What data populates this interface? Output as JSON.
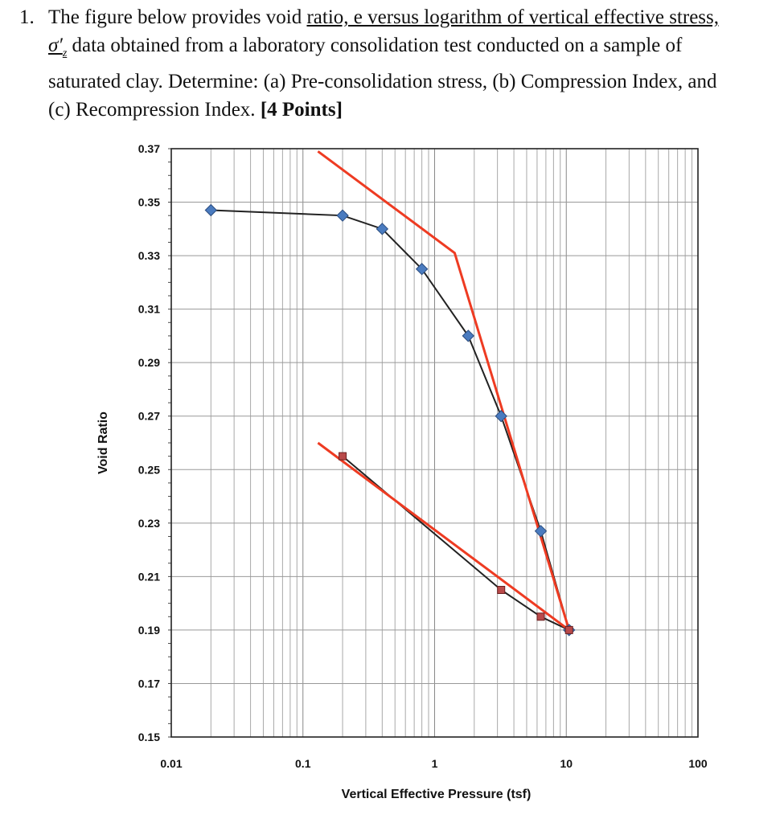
{
  "question": {
    "number": "1.",
    "line1_pre": "The figure below provides void ",
    "line1_ul": "ratio, e versus logarithm of vertical effective stress,",
    "line2_sigma": "σ′",
    "line2_sub": "z",
    "line2_rest": " data obtained from a laboratory consolidation test conducted on a sample of",
    "line3": "saturated clay. Determine: (a) Pre-consolidation stress, (b) Compression Index, and",
    "line4_pre": "(c) Recompression Index. ",
    "line4_bold": "[4 Points]"
  },
  "chart_data": {
    "type": "scatter",
    "xscale": "log",
    "xlim": [
      0.01,
      100
    ],
    "ylim": [
      0.15,
      0.37
    ],
    "xlabel": "Vertical Effective Pressure (tsf)",
    "ylabel": "Void Ratio",
    "xticks": [
      0.01,
      0.1,
      1,
      10,
      100
    ],
    "xtick_labels": [
      "0.01",
      "0.1",
      "1",
      "10",
      "100"
    ],
    "yticks": [
      0.37,
      0.35,
      0.33,
      0.31,
      0.29,
      0.27,
      0.25,
      0.23,
      0.21,
      0.19,
      0.17,
      0.15
    ],
    "ytick_labels": [
      "0.37",
      "0.35",
      "0.33",
      "0.31",
      "0.29",
      "0.27",
      "0.25",
      "0.23",
      "0.21",
      "0.19",
      "0.17",
      "0.15"
    ],
    "grid": true,
    "series": [
      {
        "marker": "diamond",
        "color": "#4a7bbf",
        "x": [
          0.02,
          0.2,
          0.4,
          0.8,
          1.8,
          3.2,
          6.4,
          10.5
        ],
        "y": [
          0.347,
          0.345,
          0.34,
          0.325,
          0.3,
          0.27,
          0.227,
          0.19
        ]
      },
      {
        "marker": "square",
        "color": "#b94a4a",
        "x": [
          0.2,
          3.2,
          6.4,
          10.5
        ],
        "y": [
          0.255,
          0.205,
          0.195,
          0.19
        ]
      }
    ],
    "construction_lines": [
      {
        "color": "#ee3b22",
        "x": [
          0.13,
          1.42,
          10.5
        ],
        "y": [
          0.369,
          0.331,
          0.19
        ]
      },
      {
        "color": "#ee3b22",
        "x": [
          0.13,
          10.5
        ],
        "y": [
          0.26,
          0.19
        ]
      }
    ]
  }
}
